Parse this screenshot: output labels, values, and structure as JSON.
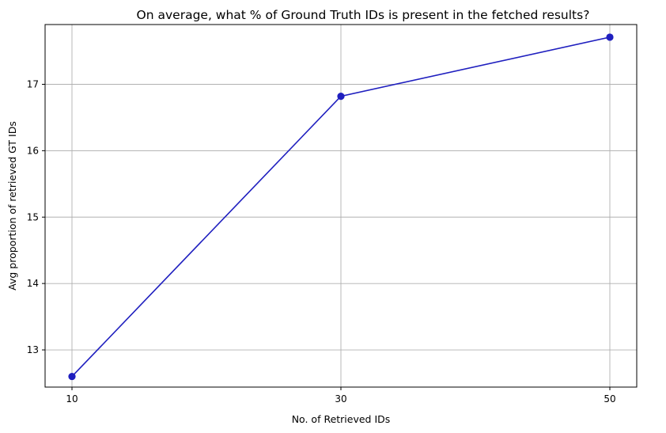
{
  "chart_data": {
    "type": "line",
    "title": "On average, what % of Ground Truth IDs is present in the fetched results?",
    "xlabel": "No. of Retrieved IDs",
    "ylabel": "Avg proportion of retrieved GT IDs",
    "x": [
      10,
      30,
      50
    ],
    "x_ticks": [
      "10",
      "30",
      "50"
    ],
    "y_ticks": [
      13,
      14,
      15,
      16,
      17
    ],
    "xlim": [
      8,
      52
    ],
    "ylim": [
      12.44,
      17.9
    ],
    "grid": true,
    "series": [
      {
        "values": [
          12.6,
          16.82,
          17.71
        ],
        "color": "#1f1fbf"
      }
    ]
  }
}
